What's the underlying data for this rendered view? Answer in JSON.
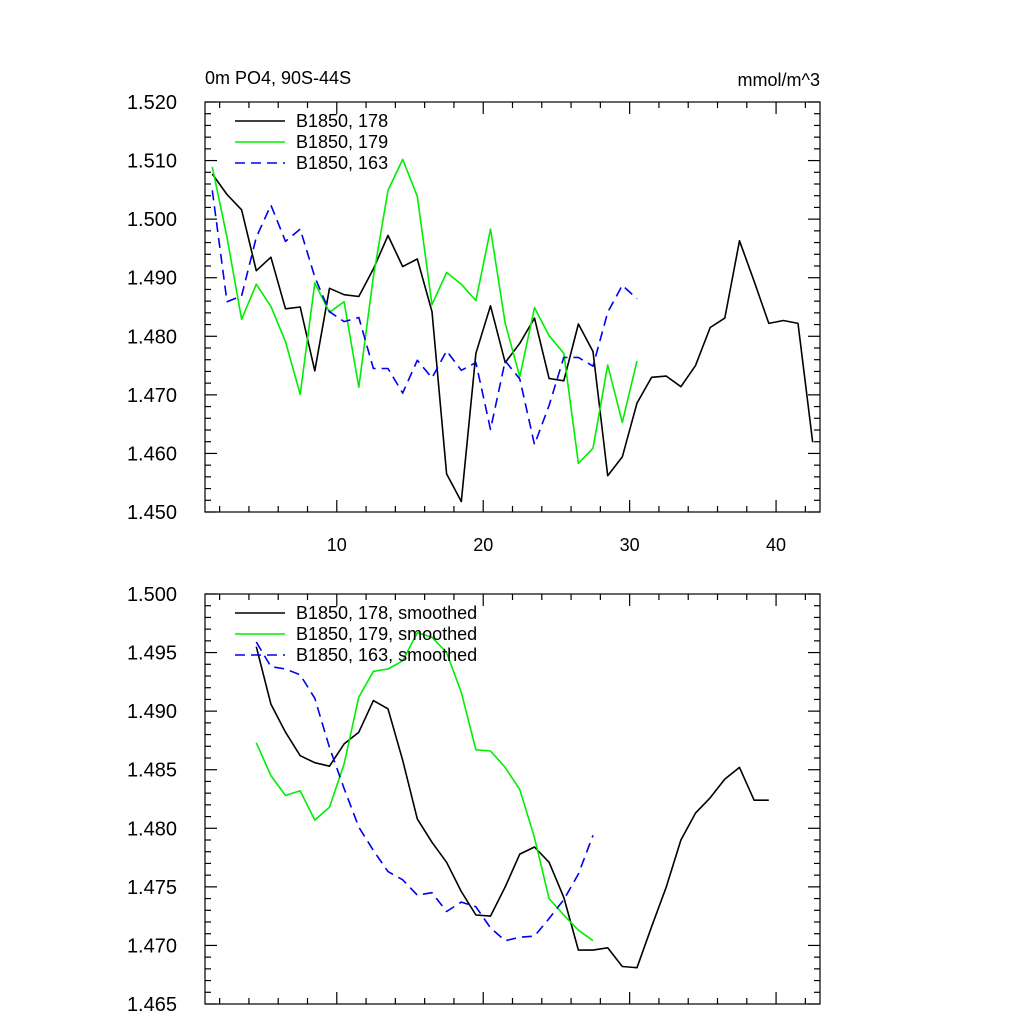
{
  "chart_data": [
    {
      "type": "line",
      "title": "0m PO4, 90S-44S",
      "units_label": "mmol/m^3",
      "xlabel": "",
      "ylabel": "",
      "xlim": [
        1,
        43
      ],
      "ylim": [
        1.45,
        1.52
      ],
      "xticks": [
        10,
        20,
        30,
        40
      ],
      "xtick_labels": [
        "10",
        "20",
        "30",
        "40"
      ],
      "yticks": [
        1.45,
        1.46,
        1.47,
        1.48,
        1.49,
        1.5,
        1.51,
        1.52
      ],
      "ytick_labels": [
        "1.450",
        "1.460",
        "1.470",
        "1.480",
        "1.490",
        "1.500",
        "1.510",
        "1.520"
      ],
      "grid": false,
      "legend": "top-left",
      "series": [
        {
          "name": "B1850, 178",
          "color": "#000000",
          "dash": "solid",
          "x": [
            1.5,
            2.5,
            3.5,
            4.5,
            5.5,
            6.5,
            7.5,
            8.5,
            9.5,
            10.5,
            11.5,
            12.5,
            13.5,
            14.5,
            15.5,
            16.5,
            17.5,
            18.5,
            19.5,
            20.5,
            21.5,
            22.5,
            23.5,
            24.5,
            25.5,
            26.5,
            27.5,
            28.5,
            29.5,
            30.5,
            31.5,
            32.5,
            33.5,
            34.5,
            35.5,
            36.5,
            37.5,
            38.5,
            39.5,
            40.5,
            41.5,
            42.5
          ],
          "values": [
            1.5077,
            1.5042,
            1.5016,
            1.4912,
            1.4935,
            1.4847,
            1.485,
            1.4741,
            1.4882,
            1.4871,
            1.4868,
            1.4915,
            1.4972,
            1.4919,
            1.4932,
            1.4842,
            1.4565,
            1.4518,
            1.4771,
            1.4852,
            1.4755,
            1.4788,
            1.4831,
            1.4728,
            1.4724,
            1.4821,
            1.4774,
            1.4562,
            1.4594,
            1.4686,
            1.473,
            1.4732,
            1.4714,
            1.475,
            1.4815,
            1.4831,
            1.4963,
            1.4894,
            1.4822,
            1.4827,
            1.4822,
            1.4619
          ]
        },
        {
          "name": "B1850, 179",
          "color": "#00ee00",
          "dash": "solid",
          "x": [
            1.5,
            2.5,
            3.5,
            4.5,
            5.5,
            6.5,
            7.5,
            8.5,
            9.5,
            10.5,
            11.5,
            12.5,
            13.5,
            14.5,
            15.5,
            16.5,
            17.5,
            18.5,
            19.5,
            20.5,
            21.5,
            22.5,
            23.5,
            24.5,
            25.5,
            26.5,
            27.5,
            28.5,
            29.5,
            30.5
          ],
          "values": [
            1.5089,
            1.4969,
            1.4829,
            1.4889,
            1.4851,
            1.4791,
            1.4701,
            1.4891,
            1.4841,
            1.4859,
            1.4713,
            1.4902,
            1.5049,
            1.5102,
            1.5039,
            1.4854,
            1.4909,
            1.4889,
            1.4861,
            1.4983,
            1.4822,
            1.4731,
            1.4849,
            1.4801,
            1.4771,
            1.4583,
            1.4609,
            1.4751,
            1.4653,
            1.4758
          ]
        },
        {
          "name": "B1850, 163",
          "color": "#0000ee",
          "dash": "dashed",
          "x": [
            1.5,
            2.5,
            3.5,
            4.5,
            5.5,
            6.5,
            7.5,
            8.5,
            9.5,
            10.5,
            11.5,
            12.5,
            13.5,
            14.5,
            15.5,
            16.5,
            17.5,
            18.5,
            19.5,
            20.5,
            21.5,
            22.5,
            23.5,
            24.5,
            25.5,
            26.5,
            27.5,
            28.5,
            29.5,
            30.5
          ],
          "values": [
            1.5049,
            1.4859,
            1.4869,
            1.4969,
            1.5024,
            1.4962,
            1.4983,
            1.4901,
            1.4842,
            1.4825,
            1.4832,
            1.4745,
            1.4745,
            1.4703,
            1.4759,
            1.4729,
            1.4775,
            1.4742,
            1.4755,
            1.4641,
            1.4758,
            1.4727,
            1.4615,
            1.4682,
            1.4764,
            1.4764,
            1.4749,
            1.4841,
            1.4887,
            1.4864
          ]
        }
      ]
    },
    {
      "type": "line",
      "title": "",
      "xlabel": "",
      "ylabel": "",
      "xlim": [
        1,
        43
      ],
      "ylim": [
        1.465,
        1.5
      ],
      "xticks": [
        10,
        20,
        30,
        40
      ],
      "yticks": [
        1.465,
        1.47,
        1.475,
        1.48,
        1.485,
        1.49,
        1.495,
        1.5
      ],
      "ytick_labels": [
        "1.465",
        "1.470",
        "1.475",
        "1.480",
        "1.485",
        "1.490",
        "1.495",
        "1.500"
      ],
      "grid": false,
      "legend": "top-left",
      "series": [
        {
          "name": "B1850, 178, smoothed",
          "color": "#000000",
          "dash": "solid",
          "x": [
            4.5,
            5.5,
            6.5,
            7.5,
            8.5,
            9.5,
            10.5,
            11.5,
            12.5,
            13.5,
            14.5,
            15.5,
            16.5,
            17.5,
            18.5,
            19.5,
            20.5,
            21.5,
            22.5,
            23.5,
            24.5,
            25.5,
            26.5,
            27.5,
            28.5,
            29.5,
            30.5,
            31.5,
            32.5,
            33.5,
            34.5,
            35.5,
            36.5,
            37.5,
            38.5,
            39.5
          ],
          "values": [
            1.4955,
            1.4906,
            1.4882,
            1.4862,
            1.4856,
            1.4853,
            1.4872,
            1.4882,
            1.4909,
            1.4902,
            1.4858,
            1.4808,
            1.4788,
            1.4771,
            1.4746,
            1.4726,
            1.4725,
            1.475,
            1.4778,
            1.4784,
            1.4771,
            1.4741,
            1.4696,
            1.4696,
            1.4698,
            1.4682,
            1.4681,
            1.4716,
            1.475,
            1.479,
            1.4813,
            1.4826,
            1.4842,
            1.4852,
            1.4824,
            1.4824
          ]
        },
        {
          "name": "B1850, 179, smoothed",
          "color": "#00ee00",
          "dash": "solid",
          "x": [
            4.5,
            5.5,
            6.5,
            7.5,
            8.5,
            9.5,
            10.5,
            11.5,
            12.5,
            13.5,
            14.5,
            15.5,
            16.5,
            17.5,
            18.5,
            19.5,
            20.5,
            21.5,
            22.5,
            23.5,
            24.5,
            25.5,
            26.5,
            27.5
          ],
          "values": [
            1.4873,
            1.4845,
            1.4828,
            1.4832,
            1.4807,
            1.4818,
            1.4855,
            1.4912,
            1.4934,
            1.4936,
            1.4943,
            1.4967,
            1.4963,
            1.495,
            1.4916,
            1.4867,
            1.4866,
            1.4852,
            1.4833,
            1.4792,
            1.474,
            1.4726,
            1.4713,
            1.4704
          ]
        },
        {
          "name": "B1850, 163, smoothed",
          "color": "#0000ee",
          "dash": "dashed",
          "x": [
            4.5,
            5.5,
            6.5,
            7.5,
            8.5,
            9.5,
            10.5,
            11.5,
            12.5,
            13.5,
            14.5,
            15.5,
            16.5,
            17.5,
            18.5,
            19.5,
            20.5,
            21.5,
            22.5,
            23.5,
            24.5,
            25.5,
            26.5,
            27.5
          ],
          "values": [
            1.4959,
            1.4938,
            1.4936,
            1.4931,
            1.4911,
            1.4869,
            1.4834,
            1.4801,
            1.4781,
            1.4763,
            1.4756,
            1.4743,
            1.4745,
            1.4729,
            1.4737,
            1.4733,
            1.4715,
            1.4704,
            1.4707,
            1.4708,
            1.4723,
            1.4739,
            1.4761,
            1.4794
          ]
        }
      ]
    }
  ]
}
